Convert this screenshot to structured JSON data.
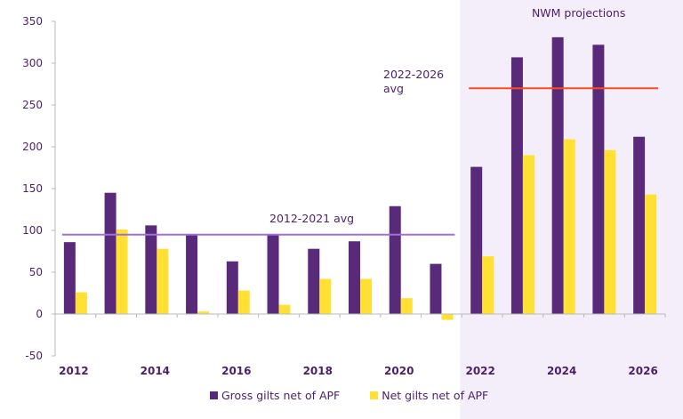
{
  "chart_data": {
    "type": "bar",
    "title": "",
    "xlabel": "",
    "ylabel": "",
    "ylim": [
      -50,
      350
    ],
    "yticks": [
      -50,
      0,
      50,
      100,
      150,
      200,
      250,
      300,
      350
    ],
    "categories": [
      "2012",
      "2013",
      "2014",
      "2015",
      "2016",
      "2017",
      "2018",
      "2019",
      "2020",
      "2021",
      "2022",
      "2023",
      "2024",
      "2025",
      "2026"
    ],
    "xtick_labels": [
      "2012",
      "2014",
      "2016",
      "2018",
      "2020",
      "2022",
      "2024",
      "2026"
    ],
    "series": [
      {
        "name": "Gross gilts net of APF",
        "color": "#5a2a7a",
        "values": [
          86,
          145,
          106,
          95,
          63,
          95,
          78,
          87,
          129,
          60,
          176,
          307,
          331,
          322,
          212
        ]
      },
      {
        "name": "Net gilts net of APF",
        "color": "#ffe033",
        "values": [
          26,
          101,
          78,
          3,
          28,
          11,
          42,
          42,
          19,
          -7,
          69,
          190,
          209,
          196,
          143
        ]
      }
    ],
    "reference_lines": [
      {
        "label": "2012-2021 avg",
        "value": 95,
        "from": "2012",
        "to": "2021",
        "color": "#a070d8"
      },
      {
        "label": "2022-2026 avg",
        "value": 270,
        "from": "2022",
        "to": "2026",
        "color": "#ff4a1c"
      }
    ],
    "shaded_region": {
      "label": "NWM projections",
      "from": "2022",
      "to": "2026",
      "color": "#f4eefa"
    },
    "legend": "bottom-center",
    "grid": false
  }
}
